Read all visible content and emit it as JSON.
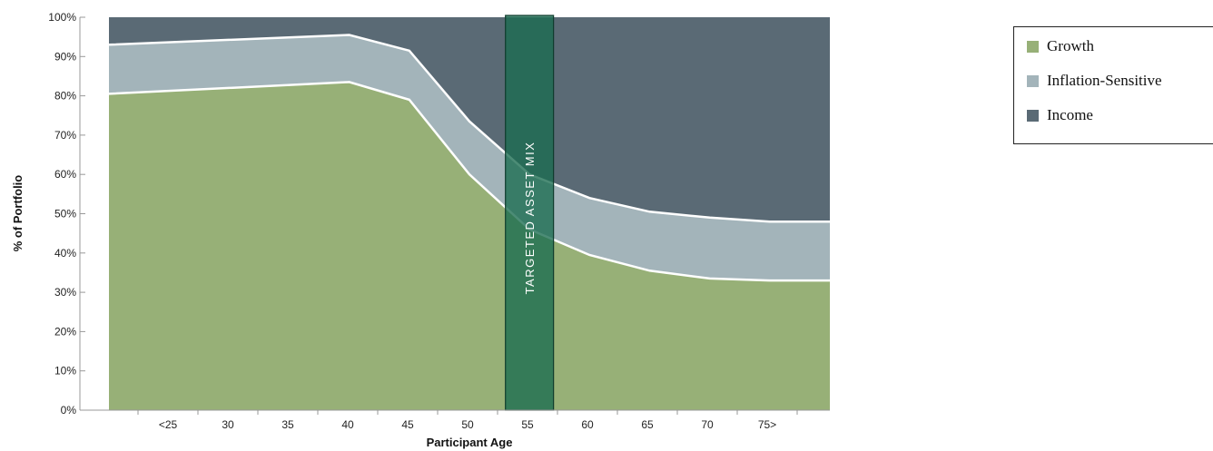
{
  "chart_data": {
    "type": "area",
    "stacked": true,
    "xlabel": "Participant Age",
    "ylabel": "% of Portfolio",
    "ylim": [
      0,
      100
    ],
    "y_ticks": [
      "0%",
      "10%",
      "20%",
      "30%",
      "40%",
      "50%",
      "60%",
      "70%",
      "80%",
      "90%",
      "100%"
    ],
    "x_tick_labels": [
      "<25",
      "30",
      "35",
      "40",
      "45",
      "50",
      "55",
      "60",
      "65",
      "70",
      "75>"
    ],
    "x": [
      20,
      40,
      45,
      50,
      55,
      60,
      65,
      70,
      75,
      80
    ],
    "series": [
      {
        "name": "Growth",
        "color": "#97b077",
        "values": [
          80.5,
          83.5,
          79,
          60,
          46,
          39.5,
          35.5,
          33.5,
          33,
          33
        ]
      },
      {
        "name": "Inflation-Sensitive",
        "color": "#a3b4ba",
        "values": [
          12.5,
          12.0,
          12.5,
          13.5,
          14,
          14.5,
          15,
          15.5,
          15,
          15
        ]
      },
      {
        "name": "Income",
        "color": "#5a6a75",
        "values": [
          7.0,
          4.5,
          8.5,
          26.5,
          40,
          46,
          49.5,
          51,
          52,
          52
        ]
      }
    ],
    "annotation": {
      "label": "TARGETED ASSET MIX",
      "x_from": 53,
      "x_to": 57,
      "color": "#1a6b50"
    },
    "legend_position": "right",
    "grid": false
  },
  "legend": {
    "items": [
      {
        "label": "Growth",
        "color": "#97b077"
      },
      {
        "label": "Inflation-Sensitive",
        "color": "#a3b4ba"
      },
      {
        "label": "Income",
        "color": "#5a6a75"
      }
    ]
  }
}
